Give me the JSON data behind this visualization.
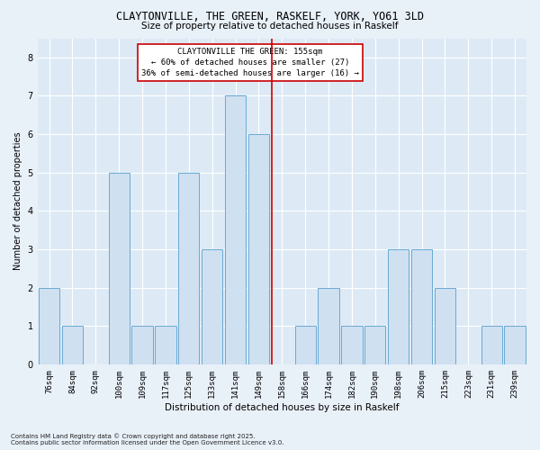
{
  "title_line1": "CLAYTONVILLE, THE GREEN, RASKELF, YORK, YO61 3LD",
  "title_line2": "Size of property relative to detached houses in Raskelf",
  "xlabel": "Distribution of detached houses by size in Raskelf",
  "ylabel": "Number of detached properties",
  "categories": [
    "76sqm",
    "84sqm",
    "92sqm",
    "100sqm",
    "109sqm",
    "117sqm",
    "125sqm",
    "133sqm",
    "141sqm",
    "149sqm",
    "158sqm",
    "166sqm",
    "174sqm",
    "182sqm",
    "190sqm",
    "198sqm",
    "206sqm",
    "215sqm",
    "223sqm",
    "231sqm",
    "239sqm"
  ],
  "values": [
    2,
    1,
    0,
    5,
    1,
    1,
    5,
    3,
    7,
    6,
    0,
    1,
    2,
    1,
    1,
    3,
    3,
    2,
    0,
    1,
    1
  ],
  "bar_color": "#cfe0f0",
  "bar_edge_color": "#6aaad4",
  "property_line_color": "#cc0000",
  "annotation_text": "CLAYTONVILLE THE GREEN: 155sqm\n← 60% of detached houses are smaller (27)\n36% of semi-detached houses are larger (16) →",
  "annotation_box_color": "#ffffff",
  "annotation_box_edge_color": "#cc0000",
  "ylim": [
    0,
    8.5
  ],
  "yticks": [
    0,
    1,
    2,
    3,
    4,
    5,
    6,
    7,
    8
  ],
  "plot_bg_color": "#ddeaf6",
  "fig_bg_color": "#e8f0f8",
  "grid_color": "#ffffff",
  "footer_text": "Contains HM Land Registry data © Crown copyright and database right 2025.\nContains public sector information licensed under the Open Government Licence v3.0."
}
